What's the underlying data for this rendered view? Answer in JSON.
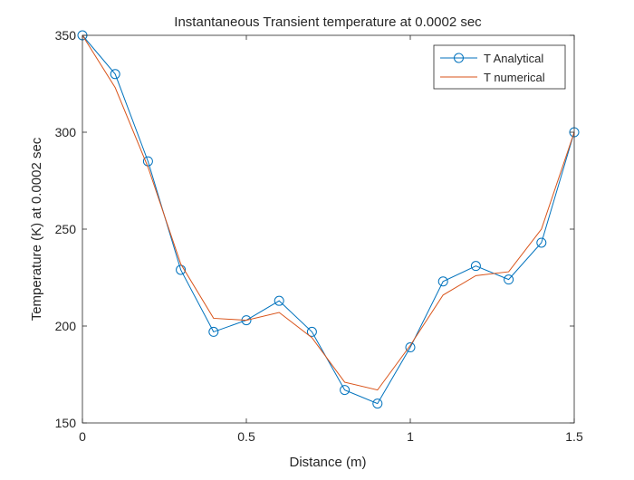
{
  "chart_data": {
    "type": "line",
    "title": "Instantaneous Transient temperature at 0.0002 sec",
    "xlabel": "Distance (m)",
    "ylabel": "Temperature (K) at 0.0002 sec",
    "xlim": [
      0,
      1.5
    ],
    "ylim": [
      150,
      350
    ],
    "xticks": [
      0,
      0.5,
      1,
      1.5
    ],
    "xtick_labels": [
      "0",
      "0.5",
      "1",
      "1.5"
    ],
    "yticks": [
      150,
      200,
      250,
      300,
      350
    ],
    "ytick_labels": [
      "150",
      "200",
      "250",
      "300",
      "350"
    ],
    "grid": false,
    "legend_position": "top-right",
    "x": [
      0,
      0.1,
      0.2,
      0.3,
      0.4,
      0.5,
      0.6,
      0.7,
      0.8,
      0.9,
      1.0,
      1.1,
      1.2,
      1.3,
      1.4,
      1.5
    ],
    "series": [
      {
        "name": "T Analytical",
        "color": "#0072BD",
        "marker": "circle",
        "values": [
          350,
          330,
          285,
          229,
          197,
          203,
          213,
          197,
          167,
          160,
          189,
          223,
          231,
          224,
          243,
          300
        ]
      },
      {
        "name": "T numerical",
        "color": "#D95319",
        "marker": "none",
        "values": [
          350,
          323,
          282,
          232,
          204,
          203,
          207,
          194,
          171,
          167,
          190,
          216,
          226,
          228,
          250,
          300
        ]
      }
    ]
  }
}
